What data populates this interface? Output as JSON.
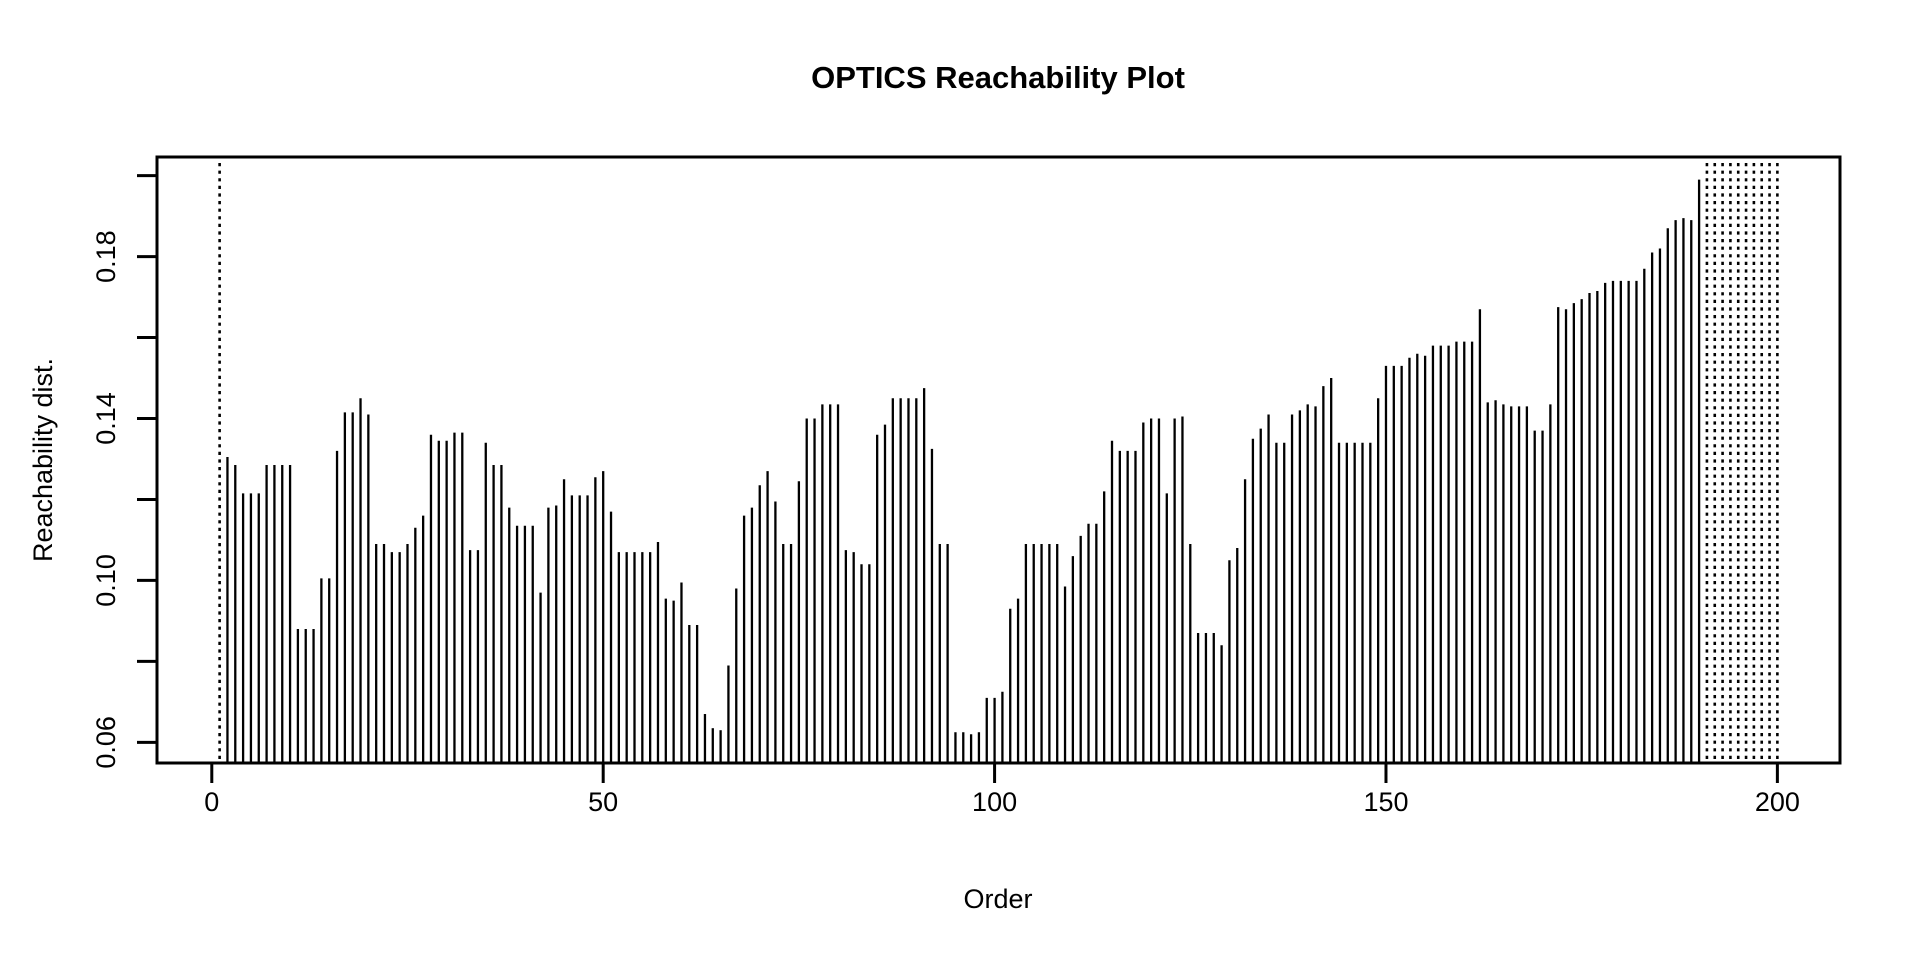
{
  "window": {
    "background": "#ffffff"
  },
  "chart_data": {
    "type": "bar",
    "title": "OPTICS Reachability Plot",
    "xlabel": "Order",
    "ylabel": "Reachability dist.",
    "x_ticks": [
      0,
      50,
      100,
      150,
      200
    ],
    "x_tick_labels": [
      "0",
      "50",
      "100",
      "150",
      "200"
    ],
    "y_ticks": [
      0.06,
      0.08,
      0.1,
      0.12,
      0.14,
      0.16,
      0.18,
      0.2
    ],
    "y_labeled_ticks": [
      0.06,
      0.1,
      0.14,
      0.18
    ],
    "y_tick_labels": [
      "0.06",
      "0.10",
      "0.14",
      "0.18"
    ],
    "xlim": [
      -7,
      208
    ],
    "ylim": [
      0.0549,
      0.2046
    ],
    "grid": false,
    "legend": "none",
    "bar_style": "vertical-line",
    "undefined_style": "dotted-full-height",
    "undefined_orders": [
      1,
      191,
      192,
      193,
      194,
      195,
      196,
      197,
      198,
      199,
      200
    ],
    "x": [
      1,
      2,
      3,
      4,
      5,
      6,
      7,
      8,
      9,
      10,
      11,
      12,
      13,
      14,
      15,
      16,
      17,
      18,
      19,
      20,
      21,
      22,
      23,
      24,
      25,
      26,
      27,
      28,
      29,
      30,
      31,
      32,
      33,
      34,
      35,
      36,
      37,
      38,
      39,
      40,
      41,
      42,
      43,
      44,
      45,
      46,
      47,
      48,
      49,
      50,
      51,
      52,
      53,
      54,
      55,
      56,
      57,
      58,
      59,
      60,
      61,
      62,
      63,
      64,
      65,
      66,
      67,
      68,
      69,
      70,
      71,
      72,
      73,
      74,
      75,
      76,
      77,
      78,
      79,
      80,
      81,
      82,
      83,
      84,
      85,
      86,
      87,
      88,
      89,
      90,
      91,
      92,
      93,
      94,
      95,
      96,
      97,
      98,
      99,
      100,
      101,
      102,
      103,
      104,
      105,
      106,
      107,
      108,
      109,
      110,
      111,
      112,
      113,
      114,
      115,
      116,
      117,
      118,
      119,
      120,
      121,
      122,
      123,
      124,
      125,
      126,
      127,
      128,
      129,
      130,
      131,
      132,
      133,
      134,
      135,
      136,
      137,
      138,
      139,
      140,
      141,
      142,
      143,
      144,
      145,
      146,
      147,
      148,
      149,
      150,
      151,
      152,
      153,
      154,
      155,
      156,
      157,
      158,
      159,
      160,
      161,
      162,
      163,
      164,
      165,
      166,
      167,
      168,
      169,
      170,
      171,
      172,
      173,
      174,
      175,
      176,
      177,
      178,
      179,
      180,
      181,
      182,
      183,
      184,
      185,
      186,
      187,
      188,
      189,
      190,
      191,
      192,
      193,
      194,
      195,
      196,
      197,
      198,
      199,
      200
    ],
    "values": [
      null,
      0.1305,
      0.1285,
      0.1215,
      0.1215,
      0.1215,
      0.1285,
      0.1285,
      0.1285,
      0.1285,
      0.088,
      0.088,
      0.088,
      0.1005,
      0.1005,
      0.132,
      0.1415,
      0.1415,
      0.145,
      0.141,
      0.109,
      0.109,
      0.107,
      0.107,
      0.109,
      0.113,
      0.116,
      0.136,
      0.1345,
      0.1345,
      0.1365,
      0.1365,
      0.1075,
      0.1075,
      0.134,
      0.1285,
      0.1285,
      0.118,
      0.1135,
      0.1135,
      0.1135,
      0.097,
      0.118,
      0.1185,
      0.125,
      0.121,
      0.121,
      0.121,
      0.1255,
      0.127,
      0.117,
      0.107,
      0.107,
      0.107,
      0.107,
      0.107,
      0.1095,
      0.0955,
      0.095,
      0.0995,
      0.089,
      0.089,
      0.067,
      0.0635,
      0.063,
      0.079,
      0.098,
      0.116,
      0.118,
      0.1235,
      0.127,
      0.1195,
      0.109,
      0.109,
      0.1245,
      0.14,
      0.14,
      0.1435,
      0.1435,
      0.1435,
      0.1075,
      0.107,
      0.104,
      0.104,
      0.136,
      0.1385,
      0.145,
      0.145,
      0.145,
      0.145,
      0.1475,
      0.1325,
      0.109,
      0.109,
      0.0625,
      0.0625,
      0.062,
      0.0625,
      0.071,
      0.071,
      0.0725,
      0.093,
      0.0955,
      0.109,
      0.109,
      0.109,
      0.109,
      0.109,
      0.0985,
      0.106,
      0.111,
      0.114,
      0.114,
      0.122,
      0.1345,
      0.132,
      0.132,
      0.132,
      0.139,
      0.14,
      0.14,
      0.1215,
      0.14,
      0.1405,
      0.109,
      0.087,
      0.087,
      0.087,
      0.084,
      0.105,
      0.108,
      0.125,
      0.135,
      0.1375,
      0.141,
      0.134,
      0.134,
      0.141,
      0.142,
      0.1435,
      0.143,
      0.148,
      0.15,
      0.134,
      0.134,
      0.134,
      0.134,
      0.134,
      0.145,
      0.153,
      0.153,
      0.153,
      0.155,
      0.156,
      0.1555,
      0.158,
      0.158,
      0.158,
      0.159,
      0.159,
      0.159,
      0.167,
      0.144,
      0.1445,
      0.1435,
      0.143,
      0.143,
      0.143,
      0.137,
      0.137,
      0.1435,
      0.1675,
      0.167,
      0.1685,
      0.1695,
      0.171,
      0.1715,
      0.1735,
      0.174,
      0.174,
      0.174,
      0.174,
      0.177,
      0.181,
      0.182,
      0.187,
      0.189,
      0.1895,
      0.189,
      0.199,
      null,
      null,
      null,
      null,
      null,
      null,
      null,
      null,
      null,
      null
    ],
    "colors": {
      "bar": "#000000",
      "box": "#000000",
      "text": "#000000",
      "background": "#ffffff"
    }
  }
}
